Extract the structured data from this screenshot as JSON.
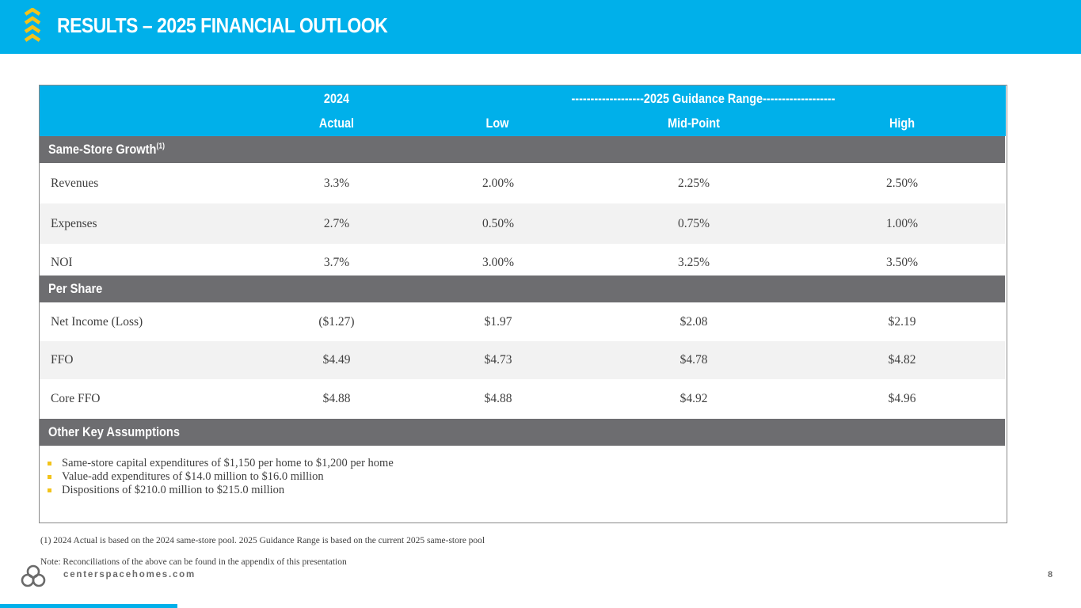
{
  "header": {
    "title": "RESULTS – 2025 FINANCIAL OUTLOOK",
    "logo_icon": "chevron-stack-logo-icon",
    "accent_color": "#00b0ea",
    "logo_color": "#f2c31a"
  },
  "table": {
    "head": {
      "year_label": "2024",
      "range_label": "-------------------2025 Guidance Range-------------------",
      "columns": [
        "Actual",
        "Low",
        "Mid-Point",
        "High"
      ]
    },
    "sections": [
      {
        "title": "Same-Store Growth",
        "footnote_mark": "(1)",
        "rows": [
          {
            "label": "Revenues",
            "values": [
              "3.3%",
              "2.00%",
              "2.25%",
              "2.50%"
            ]
          },
          {
            "label": "Expenses",
            "values": [
              "2.7%",
              "0.50%",
              "0.75%",
              "1.00%"
            ]
          },
          {
            "label": "NOI",
            "values": [
              "3.7%",
              "3.00%",
              "3.25%",
              "3.50%"
            ]
          }
        ]
      },
      {
        "title": "Per Share",
        "rows": [
          {
            "label": "Net Income (Loss)",
            "values": [
              "($1.27)",
              "$1.97",
              "$2.08",
              "$2.19"
            ]
          },
          {
            "label": "FFO",
            "values": [
              "$4.49",
              "$4.73",
              "$4.78",
              "$4.82"
            ]
          },
          {
            "label": "Core FFO",
            "values": [
              "$4.88",
              "$4.88",
              "$4.92",
              "$4.96"
            ]
          }
        ]
      },
      {
        "title": "Other Key Assumptions",
        "bullets": [
          "Same-store capital expenditures of $1,150 per home to $1,200 per home",
          "Value-add expenditures of $14.0 million to $16.0 million",
          "Dispositions of $210.0 million to $215.0 million"
        ]
      }
    ]
  },
  "footnotes": [
    "(1) 2024 Actual is based on the 2024 same-store pool. 2025 Guidance Range is based on the current 2025 same-store pool",
    "Note: Reconciliations of the above can be found in the appendix of this presentation"
  ],
  "footer": {
    "url": "centerspacehomes.com",
    "page_number": "8",
    "icon": "centerspace-knot-logo-icon"
  }
}
